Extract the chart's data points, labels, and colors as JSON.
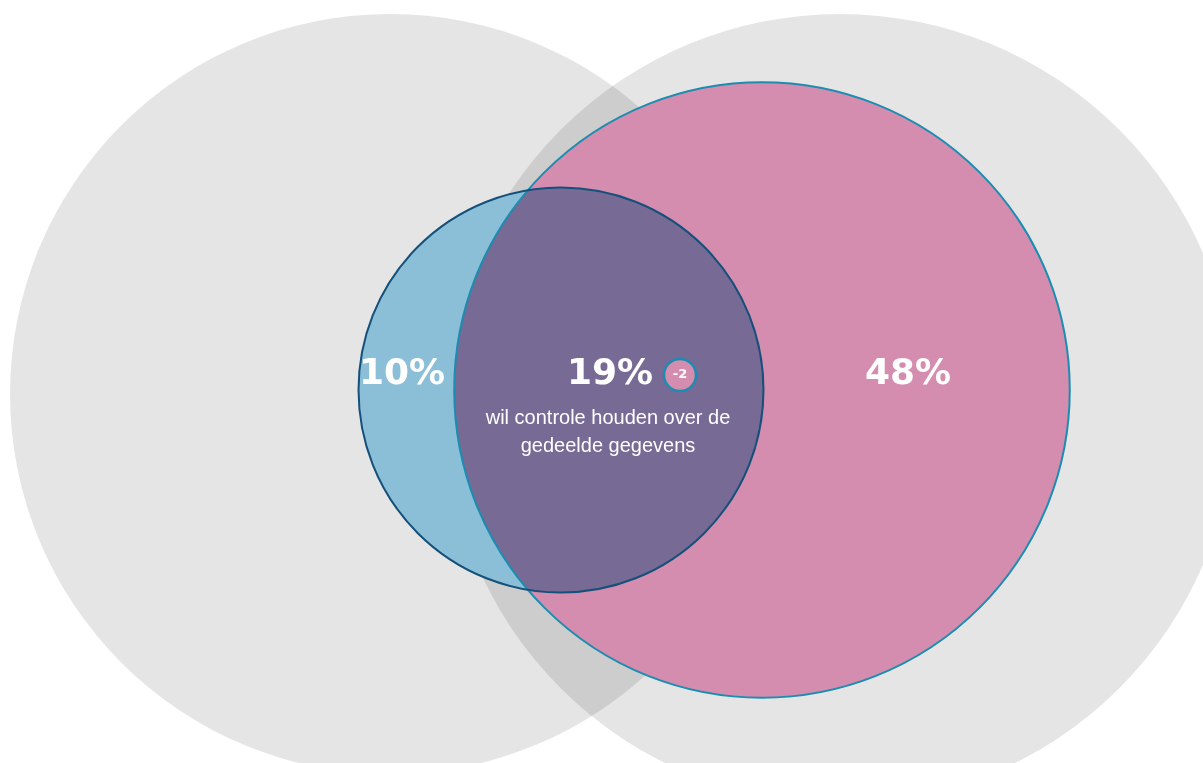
{
  "chart_data": {
    "type": "other",
    "values": [
      10,
      19,
      48
    ],
    "value_labels": [
      "10%",
      "19%",
      "48%"
    ],
    "colors": [
      "#8bbfd8",
      "#776a95",
      "#d48caf"
    ],
    "annotations": [
      "-2",
      "wil controle houden over de gedeelde gegevens"
    ]
  }
}
